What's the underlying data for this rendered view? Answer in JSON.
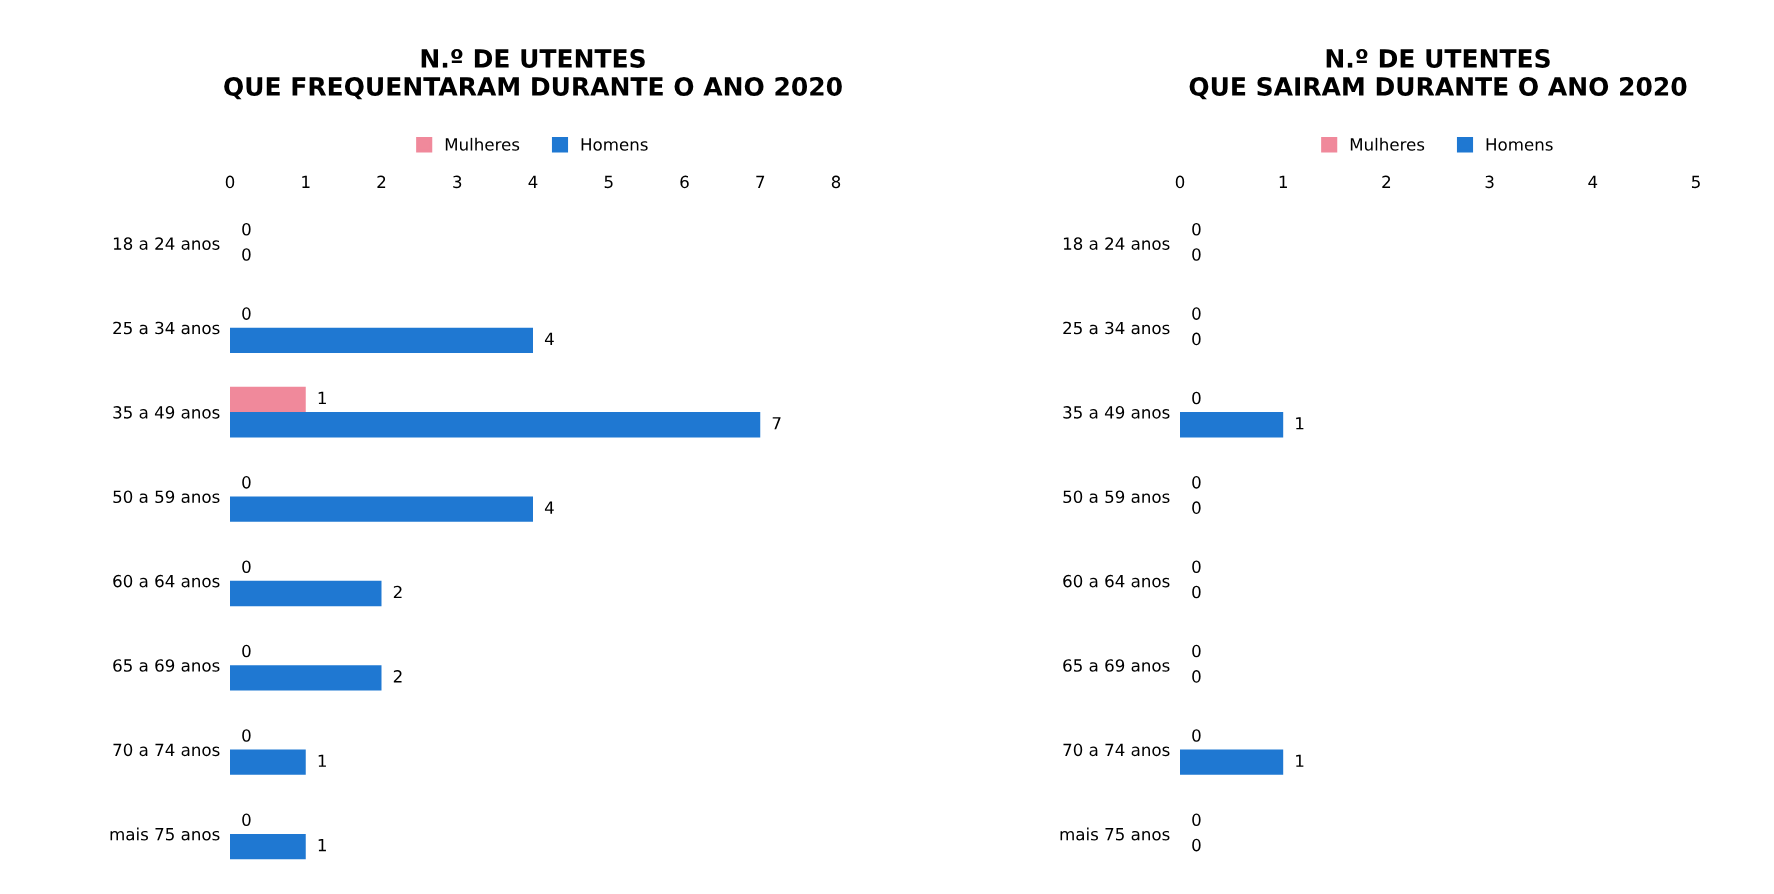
{
  "chart_data": [
    {
      "type": "bar",
      "orientation": "horizontal",
      "title": "N.º DE UTENTES\nQUE FREQUENTARAM DURANTE O ANO 2020",
      "categories": [
        "18 a 24 anos",
        "25 a 34 anos",
        "35 a 49 anos",
        "50 a 59 anos",
        "60 a 64 anos",
        "65 a 69 anos",
        "70 a 74 anos",
        "mais 75 anos"
      ],
      "series": [
        {
          "name": "Homens",
          "color": "#1f78d2",
          "values": [
            0,
            4,
            7,
            4,
            2,
            2,
            1,
            1
          ]
        },
        {
          "name": "Mulheres",
          "color": "#f0899b",
          "values": [
            0,
            0,
            1,
            0,
            0,
            0,
            0,
            0
          ]
        }
      ],
      "xlim": [
        0,
        8
      ],
      "xticks": [
        0,
        1,
        2,
        3,
        4,
        5,
        6,
        7,
        8
      ],
      "data_labels": true,
      "legend": "top",
      "grid": false
    },
    {
      "type": "bar",
      "orientation": "horizontal",
      "title": "N.º DE UTENTES\nQUE SAIRAM DURANTE O ANO 2020",
      "categories": [
        "18 a 24 anos",
        "25 a 34 anos",
        "35 a 49 anos",
        "50 a 59 anos",
        "60 a 64 anos",
        "65 a 69 anos",
        "70 a 74 anos",
        "mais 75 anos"
      ],
      "series": [
        {
          "name": "Homens",
          "color": "#1f78d2",
          "values": [
            0,
            0,
            1,
            0,
            0,
            0,
            1,
            0
          ]
        },
        {
          "name": "Mulheres",
          "color": "#f0899b",
          "values": [
            0,
            0,
            0,
            0,
            0,
            0,
            0,
            0
          ]
        }
      ],
      "xlim": [
        0,
        5
      ],
      "xticks": [
        0,
        1,
        2,
        3,
        4,
        5
      ],
      "data_labels": true,
      "legend": "top",
      "grid": false
    }
  ]
}
